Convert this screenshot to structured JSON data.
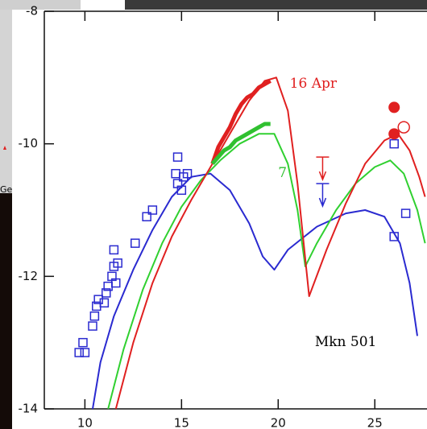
{
  "fragment_label": "Ge",
  "chart_data": {
    "type": "line",
    "xlim": [
      7.9,
      27.7
    ],
    "ylim": [
      -14,
      -8
    ],
    "xticks": [
      10,
      15,
      20,
      25
    ],
    "yticks": [
      -14,
      -12,
      -10,
      -8
    ],
    "annotations": [
      {
        "text": "16 Apr",
        "color": "#e02020"
      },
      {
        "text": "7",
        "color": "#30c030"
      },
      {
        "text": "Mkn 501",
        "color": "#000000"
      }
    ],
    "series": [
      {
        "style": "line",
        "color": "#2a2ad0",
        "x": [
          10.4,
          10.8,
          11.5,
          12.5,
          13.5,
          14.5,
          15.5,
          16.5,
          17.5,
          18.5,
          19.2,
          19.8,
          20.5,
          22,
          23.5,
          24.5,
          25.5,
          26.3,
          26.8,
          27.2
        ],
        "values": [
          -14,
          -13.3,
          -12.6,
          -11.9,
          -11.3,
          -10.8,
          -10.5,
          -10.45,
          -10.7,
          -11.2,
          -11.7,
          -11.9,
          -11.6,
          -11.25,
          -11.05,
          -11.0,
          -11.1,
          -11.5,
          -12.1,
          -12.9
        ]
      },
      {
        "style": "line",
        "color": "#30d030",
        "x": [
          11.2,
          12,
          13,
          14,
          15,
          16,
          17,
          18,
          19,
          19.8,
          20.5,
          21,
          21.4,
          22,
          23,
          24,
          25,
          25.8,
          26.5,
          27.2,
          27.6
        ],
        "values": [
          -14,
          -13.1,
          -12.2,
          -11.5,
          -10.95,
          -10.55,
          -10.25,
          -10.0,
          -9.85,
          -9.85,
          -10.3,
          -11.0,
          -11.85,
          -11.5,
          -11.0,
          -10.6,
          -10.35,
          -10.25,
          -10.45,
          -11.0,
          -11.5
        ]
      },
      {
        "style": "line",
        "color": "#e02020",
        "x": [
          11.6,
          12.5,
          13.5,
          14.5,
          15.5,
          16.5,
          17.5,
          18.5,
          19.3,
          19.9,
          20.5,
          21,
          21.6,
          22.5,
          23.5,
          24.5,
          25.5,
          26.2,
          26.8,
          27.3,
          27.6
        ],
        "values": [
          -14,
          -13.0,
          -12.1,
          -11.4,
          -10.85,
          -10.35,
          -9.85,
          -9.35,
          -9.05,
          -9.0,
          -9.5,
          -10.6,
          -12.3,
          -11.6,
          -10.9,
          -10.3,
          -9.95,
          -9.85,
          -10.1,
          -10.5,
          -10.8
        ]
      },
      {
        "style": "data",
        "color": "#e02020",
        "x": [
          16.6,
          16.9,
          17.2,
          17.5,
          17.8,
          18.1,
          18.4,
          18.7,
          19.0,
          19.3,
          19.6
        ],
        "values": [
          -10.3,
          -10.05,
          -9.9,
          -9.75,
          -9.55,
          -9.4,
          -9.3,
          -9.25,
          -9.15,
          -9.1,
          -9.05
        ]
      },
      {
        "style": "data",
        "color": "#30c030",
        "x": [
          16.6,
          16.9,
          17.2,
          17.5,
          17.8,
          18.1,
          18.4,
          18.7,
          19.0,
          19.3,
          19.6
        ],
        "values": [
          -10.3,
          -10.2,
          -10.1,
          -10.05,
          -9.95,
          -9.9,
          -9.85,
          -9.8,
          -9.75,
          -9.7,
          -9.7
        ]
      },
      {
        "style": "markers",
        "marker": "square",
        "color": "#2a2ad0",
        "x": [
          9.7,
          10,
          9.9,
          10.4,
          10.5,
          10.6,
          10.7,
          11,
          11.1,
          11.2,
          11.4,
          11.5,
          11.6,
          11.7,
          11.5,
          12.6,
          13.2,
          13.5,
          14.8,
          14.7,
          14.8,
          15,
          15.1,
          15.3,
          26,
          26,
          26.6
        ],
        "values": [
          -13.15,
          -13.15,
          -13.0,
          -12.75,
          -12.6,
          -12.45,
          -12.35,
          -12.4,
          -12.25,
          -12.15,
          -12.0,
          -11.85,
          -12.1,
          -11.8,
          -11.6,
          -11.5,
          -11.1,
          -11.0,
          -10.2,
          -10.45,
          -10.6,
          -10.7,
          -10.5,
          -10.45,
          -10.0,
          -11.4,
          -11.05
        ]
      },
      {
        "style": "markers",
        "marker": "circle",
        "color": "#e02020",
        "x": [
          26.0,
          26.0
        ],
        "values": [
          -9.45,
          -9.85
        ]
      },
      {
        "style": "markers",
        "marker": "circle-open",
        "color": "#e02020",
        "x": [
          26.5
        ],
        "values": [
          -9.75
        ]
      },
      {
        "style": "markers",
        "marker": "arrow-down",
        "color": "#e02020",
        "x": [
          22.3
        ],
        "values": [
          -10.2
        ]
      },
      {
        "style": "markers",
        "marker": "arrow-down",
        "color": "#2a2ad0",
        "x": [
          22.3
        ],
        "values": [
          -10.6
        ]
      }
    ]
  }
}
